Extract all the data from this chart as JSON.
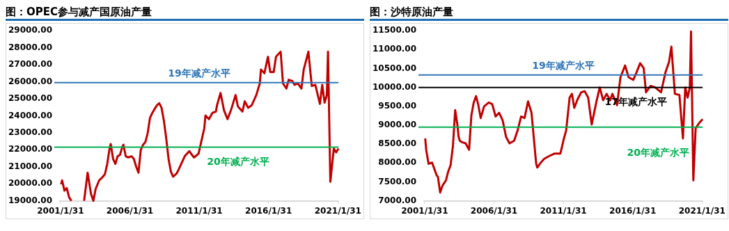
{
  "chart_data": [
    {
      "type": "line",
      "title": "图：OPEC参与减产国原油产量",
      "xlim": [
        "2001-01",
        "2021-02"
      ],
      "xticks": [
        {
          "value": "2001-01-31",
          "label": "2001/1/31"
        },
        {
          "value": "2006-01-31",
          "label": "2006/1/31"
        },
        {
          "value": "2011-01-31",
          "label": "2011/1/31"
        },
        {
          "value": "2016-01-31",
          "label": "2016/1/31"
        },
        {
          "value": "2021-01-31",
          "label": "2021/1/31"
        }
      ],
      "ylim": [
        19000,
        29000
      ],
      "yticks": [
        {
          "value": 19000,
          "label": "19000.00"
        },
        {
          "value": 20000,
          "label": "20000.00"
        },
        {
          "value": 21000,
          "label": "21000.00"
        },
        {
          "value": 22000,
          "label": "22000.00"
        },
        {
          "value": 23000,
          "label": "23000.00"
        },
        {
          "value": 24000,
          "label": "24000.00"
        },
        {
          "value": 25000,
          "label": "25000.00"
        },
        {
          "value": 26000,
          "label": "26000.00"
        },
        {
          "value": 27000,
          "label": "27000.00"
        },
        {
          "value": 28000,
          "label": "28000.00"
        },
        {
          "value": 29000,
          "label": "29000.00"
        }
      ],
      "ref_lines": [
        {
          "axis": "y",
          "value": 25950,
          "label": "19年减产水平",
          "color": "#2e75b6"
        },
        {
          "axis": "y",
          "value": 22150,
          "label": "20年减产水平",
          "color": "#00b050"
        }
      ],
      "series": [
        {
          "color": "#c00000",
          "x": [
            "2001-02",
            "2001-03",
            "2001-05",
            "2001-07",
            "2001-09",
            "2001-11",
            "2002-03",
            "2002-10",
            "2003-01",
            "2003-04",
            "2003-06",
            "2003-08",
            "2003-11",
            "2004-02",
            "2004-04",
            "2004-06",
            "2004-08",
            "2004-09",
            "2004-11",
            "2005-01",
            "2005-03",
            "2005-05",
            "2005-07",
            "2005-08",
            "2005-10",
            "2005-12",
            "2006-03",
            "2006-05",
            "2006-07",
            "2006-09",
            "2006-11",
            "2007-01",
            "2007-03",
            "2007-05",
            "2007-07",
            "2007-09",
            "2007-11",
            "2008-01",
            "2008-03",
            "2008-05",
            "2008-07",
            "2008-09",
            "2008-11",
            "2009-01",
            "2009-03",
            "2009-06",
            "2009-08",
            "2010-01",
            "2010-05",
            "2010-09",
            "2011-01",
            "2011-04",
            "2011-06",
            "2011-07",
            "2011-10",
            "2012-01",
            "2012-04",
            "2012-05",
            "2012-08",
            "2012-11",
            "2013-02",
            "2013-05",
            "2013-09",
            "2013-11",
            "2014-03",
            "2014-05",
            "2014-08",
            "2014-11",
            "2015-03",
            "2015-06",
            "2015-07",
            "2015-10",
            "2016-01",
            "2016-03",
            "2016-06",
            "2016-08",
            "2016-12",
            "2017-02",
            "2017-05",
            "2017-07",
            "2017-10",
            "2017-12",
            "2018-03",
            "2018-06",
            "2018-08",
            "2018-12",
            "2019-03",
            "2019-06",
            "2019-10",
            "2019-12",
            "2020-02",
            "2020-04",
            "2020-05",
            "2020-07",
            "2020-10",
            "2020-12",
            "2021-02"
          ],
          "values": [
            19970,
            20200,
            19600,
            19750,
            19200,
            19000,
            null,
            19000,
            20650,
            19400,
            19000,
            19700,
            20200,
            20400,
            20570,
            21170,
            22070,
            22340,
            21470,
            21170,
            21620,
            21700,
            22150,
            22300,
            21620,
            21550,
            21620,
            21470,
            21020,
            20650,
            21990,
            22300,
            22450,
            22970,
            23870,
            24170,
            24400,
            24620,
            24740,
            24470,
            23720,
            22670,
            21470,
            20720,
            20420,
            20600,
            20870,
            21620,
            21920,
            21550,
            21770,
            22670,
            23270,
            24020,
            23800,
            24170,
            24250,
            24620,
            25340,
            24320,
            23800,
            24320,
            25220,
            24550,
            24250,
            24850,
            24470,
            24620,
            25220,
            25900,
            26720,
            26500,
            27470,
            26570,
            26570,
            27470,
            27770,
            25900,
            25600,
            26120,
            26050,
            25820,
            25900,
            25600,
            26720,
            27770,
            25750,
            25820,
            24700,
            25820,
            24770,
            25220,
            27770,
            20120,
            22070,
            21850,
            22070
          ]
        }
      ]
    },
    {
      "type": "line",
      "title": "图：沙特原油产量",
      "xlim": [
        "2001-01",
        "2021-02"
      ],
      "xticks": [
        {
          "value": "2001-01-31",
          "label": "2001/1/31"
        },
        {
          "value": "2006-01-31",
          "label": "2006/1/31"
        },
        {
          "value": "2011-01-31",
          "label": "2011/1/31"
        },
        {
          "value": "2016-01-31",
          "label": "2016/1/31"
        },
        {
          "value": "2021-01-31",
          "label": "2021/1/31"
        }
      ],
      "ylim": [
        7000,
        11500
      ],
      "yticks": [
        {
          "value": 7000,
          "label": "7000.00"
        },
        {
          "value": 7500,
          "label": "7500.00"
        },
        {
          "value": 8000,
          "label": "8000.00"
        },
        {
          "value": 8500,
          "label": "8500.00"
        },
        {
          "value": 9000,
          "label": "9000.00"
        },
        {
          "value": 9500,
          "label": "9500.00"
        },
        {
          "value": 10000,
          "label": "10000.00"
        },
        {
          "value": 10500,
          "label": "10500.00"
        },
        {
          "value": 11000,
          "label": "11000.00"
        },
        {
          "value": 11500,
          "label": "11500.00"
        }
      ],
      "ref_lines": [
        {
          "axis": "y",
          "value": 10330,
          "label": "19年减产水平",
          "color": "#2e75b6"
        },
        {
          "axis": "y",
          "value": 10000,
          "label": "17年减产水平",
          "color": "#000000"
        },
        {
          "axis": "y",
          "value": 8950,
          "label": "20年减产水平",
          "color": "#00b050"
        }
      ],
      "series": [
        {
          "color": "#c00000",
          "x": [
            "2001-02",
            "2001-03",
            "2001-05",
            "2001-08",
            "2001-10",
            "2001-12",
            "2002-01",
            "2002-03",
            "2002-05",
            "2002-08",
            "2002-10",
            "2002-12",
            "2003-02",
            "2003-04",
            "2003-06",
            "2003-07",
            "2003-08",
            "2003-10",
            "2004-01",
            "2004-04",
            "2004-06",
            "2004-08",
            "2004-10",
            "2004-12",
            "2005-02",
            "2005-05",
            "2005-09",
            "2005-12",
            "2006-03",
            "2006-06",
            "2006-09",
            "2006-12",
            "2007-03",
            "2007-07",
            "2007-10",
            "2008-01",
            "2008-04",
            "2008-07",
            "2008-10",
            "2008-12",
            "2009-02",
            "2009-03",
            "2009-06",
            "2009-09",
            "2010-01",
            "2010-06",
            "2010-11",
            "2011-02",
            "2011-04",
            "2011-07",
            "2011-09",
            "2011-11",
            "2012-02",
            "2012-05",
            "2012-08",
            "2012-11",
            "2013-02",
            "2013-06",
            "2013-09",
            "2013-12",
            "2014-03",
            "2014-06",
            "2014-08",
            "2014-12",
            "2015-03",
            "2015-07",
            "2015-10",
            "2016-02",
            "2016-05",
            "2016-08",
            "2016-11",
            "2017-01",
            "2017-05",
            "2017-09",
            "2018-02",
            "2018-06",
            "2018-09",
            "2018-11",
            "2019-02",
            "2019-06",
            "2019-09",
            "2019-11",
            "2020-01",
            "2020-03",
            "2020-04",
            "2020-06",
            "2020-08",
            "2020-11",
            "2021-02"
          ],
          "values": [
            8650,
            8330,
            7980,
            8010,
            7840,
            7670,
            7640,
            7220,
            7400,
            7540,
            7780,
            7940,
            8450,
            9400,
            8990,
            8690,
            8590,
            8550,
            8520,
            8350,
            9260,
            9600,
            9770,
            9530,
            9190,
            9500,
            9600,
            9560,
            9230,
            9330,
            9130,
            8690,
            8520,
            8590,
            8860,
            9230,
            9190,
            9630,
            9330,
            8650,
            7980,
            7880,
            8010,
            8110,
            8180,
            8250,
            8250,
            8650,
            8860,
            9730,
            9830,
            9460,
            9700,
            9870,
            9900,
            9730,
            9020,
            9600,
            10000,
            9660,
            9830,
            9660,
            9830,
            9530,
            10270,
            10580,
            10270,
            10200,
            10410,
            10640,
            10510,
            9870,
            10040,
            10000,
            9870,
            10410,
            10680,
            11080,
            9830,
            9800,
            8650,
            10000,
            9730,
            10000,
            11480,
            7540,
            8920,
            9060,
            9160
          ]
        }
      ]
    }
  ]
}
